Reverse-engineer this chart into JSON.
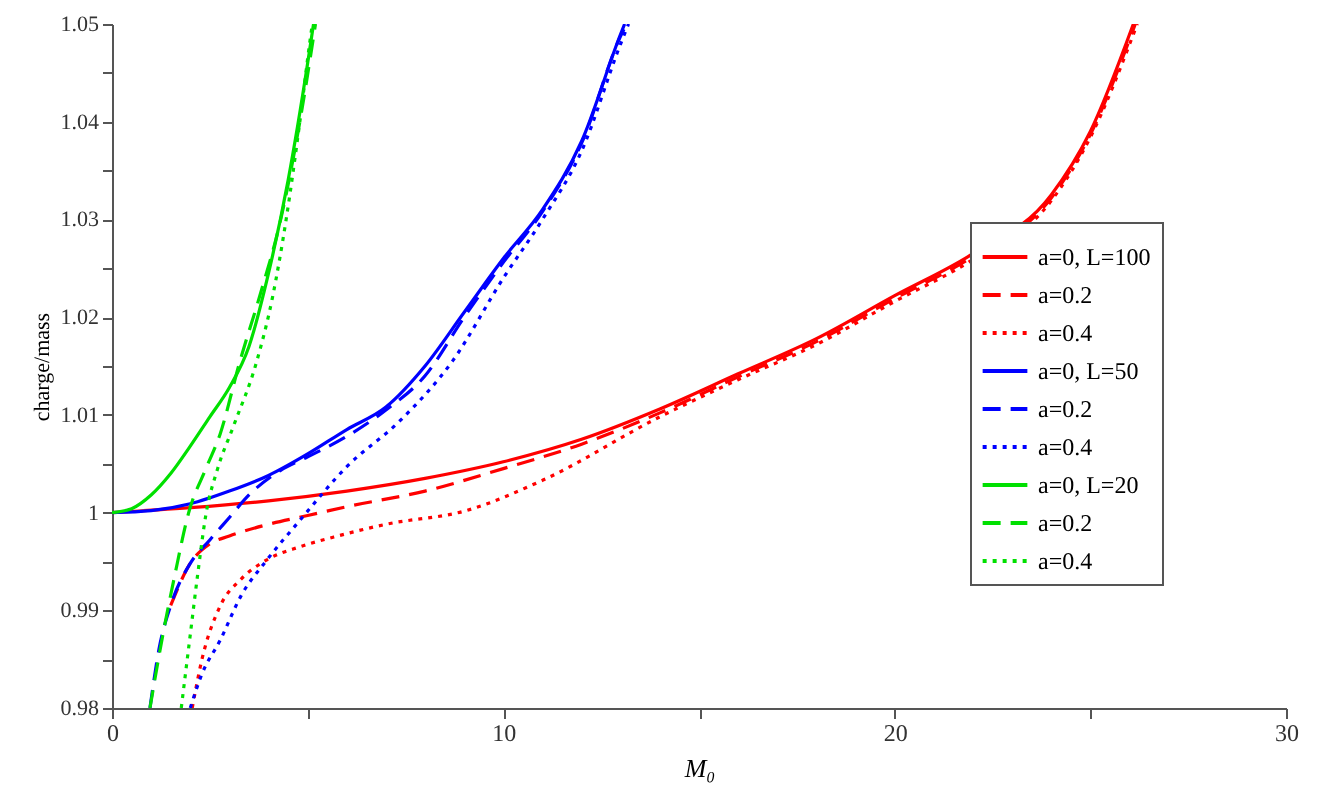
{
  "chart_data": {
    "type": "line",
    "xlabel": "M₀",
    "ylabel": "charge/mass",
    "xlim": [
      0,
      30
    ],
    "ylim": [
      0.98,
      1.05
    ],
    "xticks": [
      0,
      {
        "value": 5,
        "label": null
      },
      10,
      {
        "value": 15,
        "label": null
      },
      20,
      {
        "value": 25,
        "label": null
      },
      30
    ],
    "yticks": [
      0.98,
      {
        "value": 0.985,
        "label": null
      },
      0.99,
      {
        "value": 0.995,
        "label": null
      },
      1,
      {
        "value": 1.005,
        "label": null
      },
      1.01,
      {
        "value": 1.015,
        "label": null
      },
      1.02,
      {
        "value": 1.025,
        "label": null
      },
      1.03,
      {
        "value": 1.035,
        "label": null
      },
      1.04,
      {
        "value": 1.045,
        "label": null
      },
      1.05
    ],
    "grid": false,
    "legend": "right",
    "marker": "none",
    "series": [
      {
        "name": "a=0, L=100",
        "color": "#ff0000",
        "line_style": "solid",
        "x": [
          0,
          2,
          4,
          6,
          8,
          10,
          12,
          14,
          16,
          18,
          20,
          22,
          24,
          25,
          26.1
        ],
        "values": [
          1.0,
          1.0005,
          1.0012,
          1.0022,
          1.0035,
          1.0052,
          1.0075,
          1.0106,
          1.0142,
          1.0178,
          1.0222,
          1.0265,
          1.0325,
          1.039,
          1.05
        ]
      },
      {
        "name": "a=0.2",
        "color": "#ff0000",
        "line_style": "dashed",
        "x": [
          1.5,
          2,
          2.5,
          3,
          4,
          5,
          6,
          8,
          10,
          12,
          14,
          16,
          18,
          20,
          22,
          24,
          25,
          26.15
        ],
        "values": [
          0.9905,
          0.9948,
          0.9968,
          0.9976,
          0.9988,
          0.9997,
          1.0006,
          1.0022,
          1.0045,
          1.007,
          1.0102,
          1.0139,
          1.0175,
          1.0219,
          1.0262,
          1.0322,
          1.0387,
          1.05
        ]
      },
      {
        "name": "a=0.4",
        "color": "#ff0000",
        "line_style": "dotted",
        "x": [
          2.05,
          2.3,
          2.76,
          3.3,
          3.93,
          4.8,
          5.67,
          7,
          9.05,
          11,
          14,
          16,
          18,
          20,
          22,
          24,
          25,
          26.2
        ],
        "values": [
          0.98,
          0.985,
          0.9904,
          0.9932,
          0.9951,
          0.9965,
          0.9975,
          0.9988,
          1.0002,
          1.0033,
          1.0098,
          1.0136,
          1.0172,
          1.0216,
          1.0259,
          1.0319,
          1.0384,
          1.05
        ]
      },
      {
        "name": "a=0, L=50",
        "color": "#0000ff",
        "line_style": "solid",
        "x": [
          0,
          1,
          2,
          3,
          4,
          5,
          6,
          7,
          8,
          9,
          10,
          11,
          12,
          13,
          13.1
        ],
        "values": [
          1.0,
          1.0002,
          1.0009,
          1.0022,
          1.0038,
          1.006,
          1.0085,
          1.0108,
          1.015,
          1.0205,
          1.026,
          1.031,
          1.038,
          1.049,
          1.05
        ]
      },
      {
        "name": "a=0.2",
        "color": "#0000ff",
        "line_style": "dashed",
        "x": [
          0.97,
          1.2,
          1.5,
          2,
          2.5,
          3,
          3.5,
          4.3,
          5,
          6,
          7,
          8,
          9,
          10,
          11,
          12,
          13,
          13.15
        ],
        "values": [
          0.98,
          0.986,
          0.9905,
          0.9948,
          0.9972,
          0.9995,
          1.0018,
          1.0043,
          1.0057,
          1.0078,
          1.0105,
          1.014,
          1.02,
          1.0256,
          1.0308,
          1.0378,
          1.0488,
          1.05
        ]
      },
      {
        "name": "a=0.4",
        "color": "#0000ff",
        "line_style": "dotted",
        "x": [
          2.0,
          2.3,
          2.76,
          3.3,
          3.93,
          4.8,
          6,
          7.36,
          8.7,
          10,
          11,
          12,
          13,
          13.2
        ],
        "values": [
          0.98,
          0.9835,
          0.9869,
          0.9915,
          0.995,
          0.9992,
          1.0047,
          1.0094,
          1.0155,
          1.024,
          1.03,
          1.037,
          1.048,
          1.05
        ]
      },
      {
        "name": "a=0, L=20",
        "color": "#00e000",
        "line_style": "solid",
        "x": [
          0,
          0.5,
          1,
          1.5,
          2,
          2.5,
          3,
          3.5,
          4,
          4.5,
          5,
          5.15
        ],
        "values": [
          1.0,
          1.0004,
          1.0018,
          1.004,
          1.0068,
          1.0098,
          1.0128,
          1.017,
          1.0245,
          1.034,
          1.046,
          1.05
        ]
      },
      {
        "name": "a=0.2",
        "color": "#00e000",
        "line_style": "dashed",
        "x": [
          0.97,
          1.3,
          1.6,
          1.96,
          2.4,
          2.76,
          3.27,
          3.8,
          4.3,
          4.8,
          5.2
        ],
        "values": [
          0.98,
          0.9875,
          0.9935,
          1.0,
          1.0045,
          1.008,
          1.0155,
          1.0225,
          1.0298,
          1.04,
          1.05
        ]
      },
      {
        "name": "a=0.4",
        "color": "#00e000",
        "line_style": "dotted",
        "x": [
          1.77,
          2.0,
          2.2,
          2.4,
          2.7,
          3.1,
          3.7,
          4.1,
          4.45,
          4.8,
          5.06,
          5.12
        ],
        "values": [
          0.98,
          0.9875,
          0.994,
          0.9998,
          1.0045,
          1.0088,
          1.0155,
          1.022,
          1.03,
          1.04,
          1.0483,
          1.05
        ]
      }
    ]
  }
}
